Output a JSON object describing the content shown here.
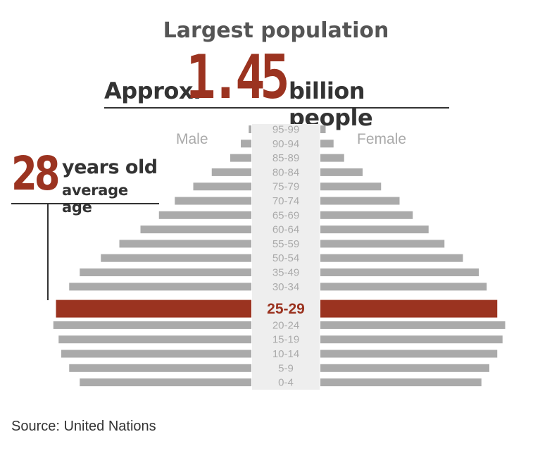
{
  "title": "Largest population",
  "headline": {
    "prefix": "Approx.",
    "number": "1.45",
    "suffix": "billion people"
  },
  "average_age": {
    "number": "28",
    "line1": "years old",
    "line2": "average age"
  },
  "labels": {
    "male": "Male",
    "female": "Female"
  },
  "source": "Source: United Nations",
  "colors": {
    "highlight": "#9b3320",
    "bar": "#aaaaaa",
    "band": "#eeeeee"
  },
  "chart_data": {
    "type": "bar",
    "orientation": "horizontal-pyramid",
    "highlight": "25-29",
    "categories": [
      "95-99",
      "90-94",
      "85-89",
      "80-84",
      "75-79",
      "70-74",
      "65-69",
      "60-64",
      "55-59",
      "50-54",
      "35-49",
      "30-34",
      "25-29",
      "20-24",
      "15-19",
      "10-14",
      "5-9",
      "0-4"
    ],
    "series": [
      {
        "name": "Male",
        "values": [
          1,
          4,
          8,
          15,
          22,
          29,
          35,
          42,
          50,
          57,
          65,
          69,
          74,
          75,
          73,
          72,
          69,
          65
        ]
      },
      {
        "name": "Female",
        "values": [
          2,
          5,
          9,
          16,
          23,
          30,
          35,
          41,
          47,
          54,
          60,
          63,
          67,
          70,
          69,
          67,
          64,
          61
        ]
      }
    ],
    "xlim": [
      0,
      80
    ]
  }
}
